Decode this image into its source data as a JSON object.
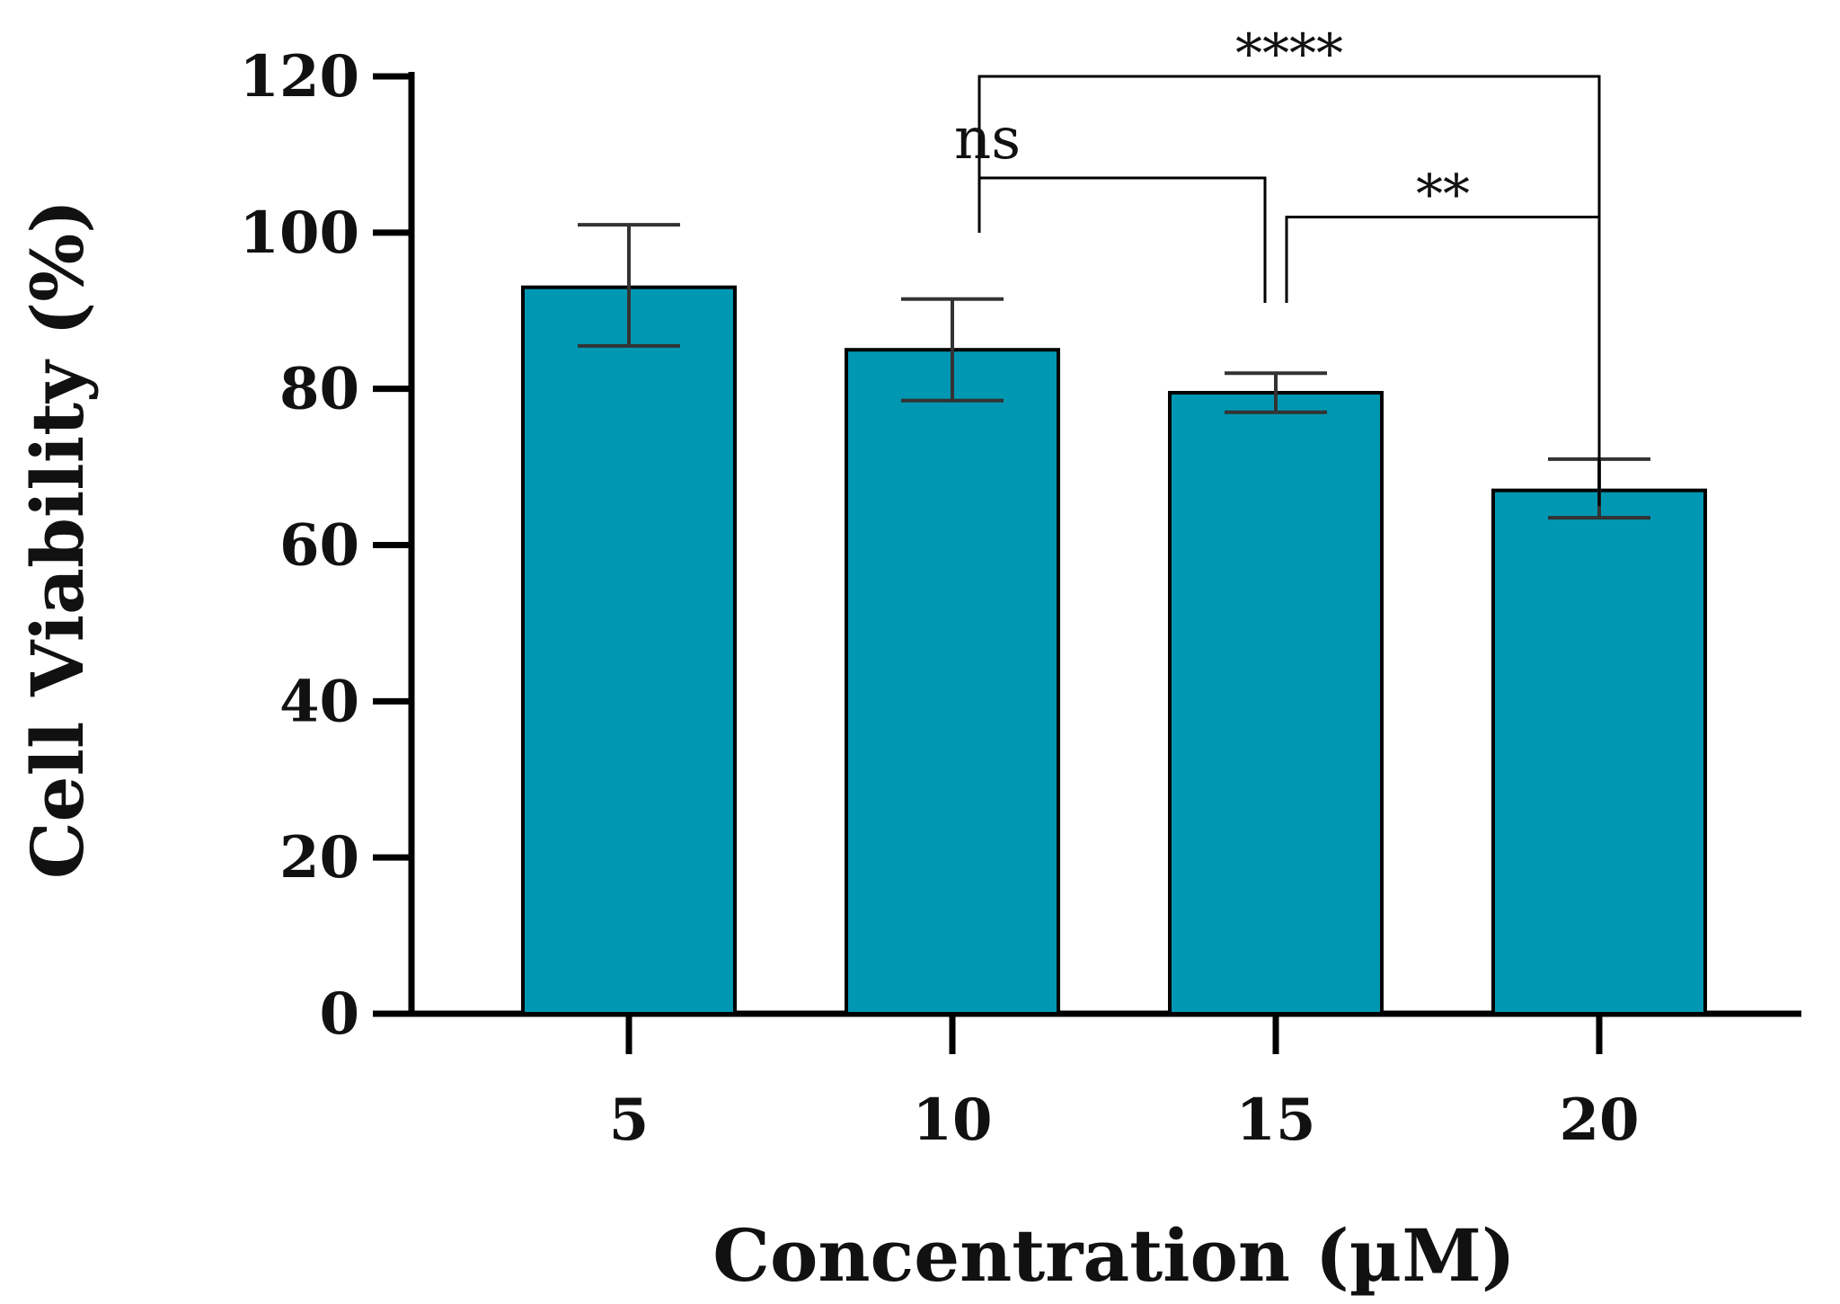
{
  "chart_data": {
    "type": "bar",
    "title": "",
    "xlabel": "Concentration (µM)",
    "ylabel": "Cell Viability (%)",
    "categories": [
      "5",
      "10",
      "15",
      "20"
    ],
    "values": [
      93,
      85,
      79.5,
      67
    ],
    "errors": [
      {
        "low": 85.5,
        "high": 101
      },
      {
        "low": 78.5,
        "high": 91.5
      },
      {
        "low": 77,
        "high": 82
      },
      {
        "low": 63.5,
        "high": 71
      }
    ],
    "ylim": [
      0,
      120
    ],
    "yticks": [
      0,
      20,
      40,
      60,
      80,
      100,
      120
    ],
    "grid": false,
    "bar_color": "#0097b2",
    "significance": [
      {
        "from": "10",
        "to": "20",
        "label": "****",
        "level": 120
      },
      {
        "from": "10",
        "to": "15",
        "label": "ns",
        "level": 107
      },
      {
        "from": "15",
        "to": "20",
        "label": "**",
        "level": 102
      }
    ]
  }
}
